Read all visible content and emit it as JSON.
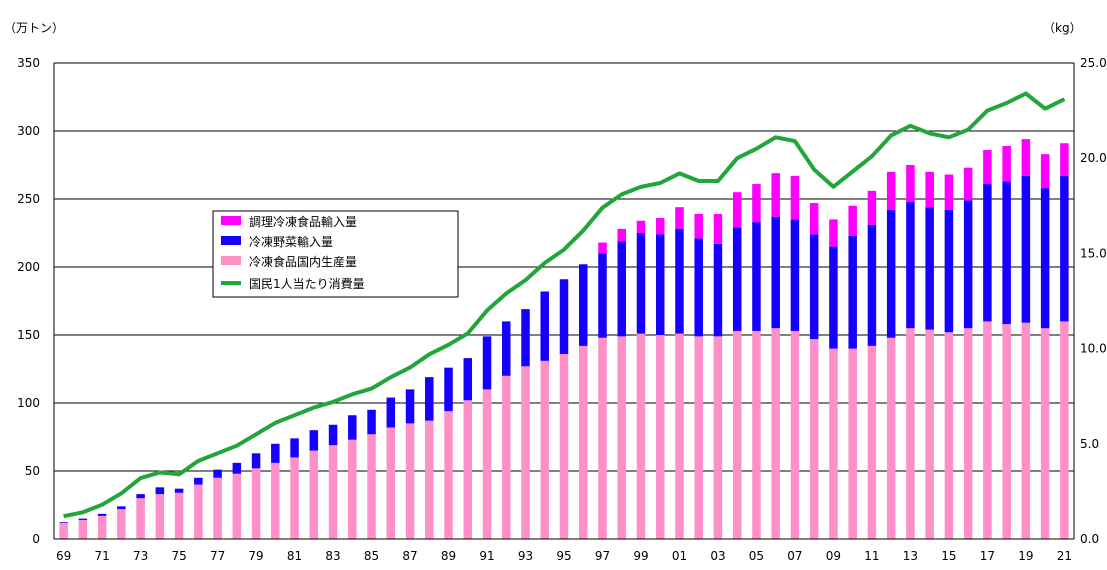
{
  "chart_data": {
    "type": "bar",
    "stacked": true,
    "title": "",
    "left_axis_unit": "（万トン）",
    "right_axis_unit": "（kg）",
    "ylim_left": [
      0,
      350
    ],
    "ylim_right": [
      0,
      25
    ],
    "left_ticks": [
      "0",
      "50",
      "100",
      "150",
      "200",
      "250",
      "300",
      "350"
    ],
    "right_ticks": [
      "0.0",
      "5.0",
      "10.0",
      "15.0",
      "20.0",
      "25.0"
    ],
    "categories": [
      "69",
      "70",
      "71",
      "72",
      "73",
      "74",
      "75",
      "76",
      "77",
      "78",
      "79",
      "80",
      "81",
      "82",
      "83",
      "84",
      "85",
      "86",
      "87",
      "88",
      "89",
      "90",
      "91",
      "92",
      "93",
      "94",
      "95",
      "96",
      "97",
      "98",
      "99",
      "00",
      "01",
      "02",
      "03",
      "04",
      "05",
      "06",
      "07",
      "08",
      "09",
      "10",
      "11",
      "12",
      "13",
      "14",
      "15",
      "16",
      "17",
      "18",
      "19",
      "20",
      "21"
    ],
    "x_tick_labels": [
      "69",
      "71",
      "73",
      "75",
      "77",
      "79",
      "81",
      "83",
      "85",
      "87",
      "89",
      "91",
      "93",
      "95",
      "97",
      "99",
      "01",
      "03",
      "05",
      "07",
      "09",
      "11",
      "13",
      "15",
      "17",
      "19",
      "21"
    ],
    "legend": [
      {
        "name": "調理冷凍食品輸入量",
        "color": "#ff00ff"
      },
      {
        "name": "冷凍野菜輸入量",
        "color": "#1500ff"
      },
      {
        "name": "冷凍食品国内生産量",
        "color": "#ff8fc8"
      },
      {
        "name": "国民1人当たり消費量",
        "color": "#22a63a"
      }
    ],
    "series": [
      {
        "name": "冷凍食品国内生産量",
        "axis": "left",
        "color": "#ff8fc8",
        "values": [
          12,
          14,
          17,
          22,
          30,
          33,
          34,
          40,
          45,
          48,
          52,
          56,
          60,
          65,
          69,
          73,
          77,
          82,
          85,
          87,
          94,
          102,
          110,
          120,
          127,
          131,
          136,
          142,
          148,
          149,
          151,
          150,
          151,
          149,
          149,
          153,
          153,
          155,
          153,
          147,
          140,
          140,
          142,
          148,
          155,
          154,
          152,
          155,
          160,
          158,
          159,
          155,
          160
        ]
      },
      {
        "name": "冷凍野菜輸入量",
        "axis": "left",
        "color": "#1500ff",
        "values": [
          0.5,
          1,
          1.5,
          2,
          3,
          5,
          3,
          5,
          6,
          8,
          11,
          14,
          14,
          15,
          15,
          18,
          18,
          22,
          25,
          32,
          32,
          31,
          39,
          40,
          42,
          51,
          55,
          60,
          62,
          70,
          74,
          74,
          77,
          72,
          68,
          76,
          80,
          82,
          82,
          77,
          75,
          83,
          89,
          94,
          93,
          90,
          90,
          94,
          101,
          105,
          108,
          103,
          107
        ]
      },
      {
        "name": "調理冷凍食品輸入量",
        "axis": "left",
        "color": "#ff00ff",
        "values": [
          0,
          0,
          0,
          0,
          0,
          0,
          0,
          0,
          0,
          0,
          0,
          0,
          0,
          0,
          0,
          0,
          0,
          0,
          0,
          0,
          0,
          0,
          0,
          0,
          0,
          0,
          0,
          0,
          8,
          9,
          9,
          12,
          16,
          18,
          22,
          26,
          28,
          32,
          32,
          23,
          20,
          22,
          25,
          28,
          27,
          26,
          26,
          24,
          25,
          26,
          27,
          25,
          24
        ]
      },
      {
        "name": "国民1人当たり消費量",
        "axis": "right",
        "type": "line",
        "color": "#22a63a",
        "values": [
          1.2,
          1.4,
          1.8,
          2.4,
          3.2,
          3.5,
          3.4,
          4.1,
          4.5,
          4.9,
          5.5,
          6.1,
          6.5,
          6.9,
          7.2,
          7.6,
          7.9,
          8.5,
          9.0,
          9.7,
          10.2,
          10.8,
          12.0,
          12.9,
          13.6,
          14.5,
          15.2,
          16.2,
          17.4,
          18.1,
          18.5,
          18.7,
          19.2,
          18.8,
          18.8,
          20.0,
          20.5,
          21.1,
          20.9,
          19.4,
          18.5,
          19.3,
          20.1,
          21.2,
          21.7,
          21.3,
          21.1,
          21.5,
          22.5,
          22.9,
          23.4,
          22.6,
          23.1
        ]
      }
    ]
  }
}
